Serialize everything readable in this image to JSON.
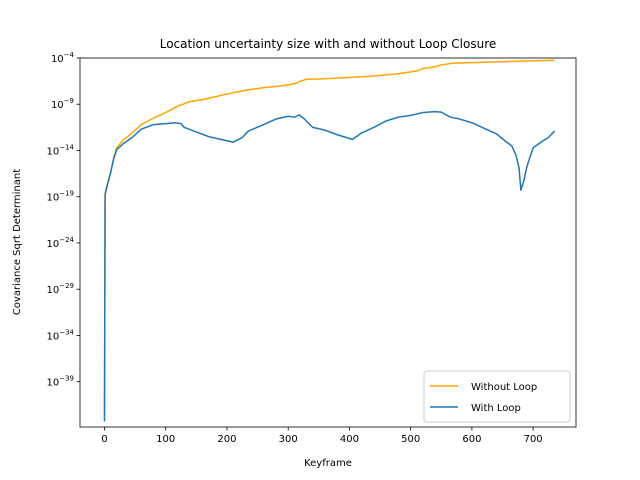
{
  "chart_data": {
    "type": "line",
    "title": "Location uncertainty size with and without Loop Closure",
    "xlabel": "Keyframe",
    "ylabel": "Covariance Sqrt Determinant",
    "xlim": [
      -40,
      770
    ],
    "ylim_log10": [
      -43.9,
      -4
    ],
    "y_scale": "log",
    "x_ticks": [
      0,
      100,
      200,
      300,
      400,
      500,
      600,
      700
    ],
    "y_ticks": [
      {
        "exp": -4,
        "label": "−4"
      },
      {
        "exp": -9,
        "label": "−9"
      },
      {
        "exp": -14,
        "label": "−14"
      },
      {
        "exp": -19,
        "label": "−19"
      },
      {
        "exp": -24,
        "label": "−24"
      },
      {
        "exp": -29,
        "label": "−29"
      },
      {
        "exp": -34,
        "label": "−34"
      },
      {
        "exp": -39,
        "label": "−39"
      }
    ],
    "y_tick_base": "10",
    "grid": false,
    "legend_position": "lower-right",
    "series": [
      {
        "name": "Without Loop",
        "color": "#ffa500",
        "points": [
          [
            0,
            -42.5
          ],
          [
            1,
            -18.6
          ],
          [
            3,
            -18.0
          ],
          [
            6,
            -17.3
          ],
          [
            10,
            -16.4
          ],
          [
            15,
            -14.8
          ],
          [
            20,
            -13.7
          ],
          [
            30,
            -12.9
          ],
          [
            45,
            -12.1
          ],
          [
            60,
            -11.2
          ],
          [
            80,
            -10.5
          ],
          [
            100,
            -9.9
          ],
          [
            120,
            -9.2
          ],
          [
            140,
            -8.7
          ],
          [
            160,
            -8.5
          ],
          [
            180,
            -8.2
          ],
          [
            200,
            -7.9
          ],
          [
            230,
            -7.5
          ],
          [
            260,
            -7.2
          ],
          [
            290,
            -7.0
          ],
          [
            310,
            -6.8
          ],
          [
            320,
            -6.5
          ],
          [
            330,
            -6.3
          ],
          [
            360,
            -6.25
          ],
          [
            400,
            -6.1
          ],
          [
            440,
            -5.95
          ],
          [
            480,
            -5.7
          ],
          [
            510,
            -5.4
          ],
          [
            520,
            -5.15
          ],
          [
            540,
            -4.95
          ],
          [
            550,
            -4.75
          ],
          [
            570,
            -4.55
          ],
          [
            600,
            -4.5
          ],
          [
            650,
            -4.4
          ],
          [
            700,
            -4.3
          ],
          [
            735,
            -4.25
          ]
        ]
      },
      {
        "name": "With Loop",
        "color": "#1f77b4",
        "points": [
          [
            0,
            -43.3
          ],
          [
            1,
            -18.8
          ],
          [
            3,
            -18.2
          ],
          [
            6,
            -17.4
          ],
          [
            10,
            -16.4
          ],
          [
            15,
            -14.9
          ],
          [
            20,
            -13.9
          ],
          [
            30,
            -13.3
          ],
          [
            45,
            -12.6
          ],
          [
            60,
            -11.7
          ],
          [
            80,
            -11.2
          ],
          [
            100,
            -11.1
          ],
          [
            115,
            -11.0
          ],
          [
            120,
            -11.05
          ],
          [
            125,
            -11.1
          ],
          [
            130,
            -11.5
          ],
          [
            150,
            -12.0
          ],
          [
            170,
            -12.5
          ],
          [
            190,
            -12.8
          ],
          [
            210,
            -13.1
          ],
          [
            225,
            -12.6
          ],
          [
            235,
            -11.9
          ],
          [
            260,
            -11.2
          ],
          [
            280,
            -10.6
          ],
          [
            300,
            -10.3
          ],
          [
            310,
            -10.4
          ],
          [
            318,
            -10.15
          ],
          [
            325,
            -10.5
          ],
          [
            340,
            -11.5
          ],
          [
            360,
            -11.8
          ],
          [
            380,
            -12.3
          ],
          [
            405,
            -12.8
          ],
          [
            420,
            -12.1
          ],
          [
            440,
            -11.5
          ],
          [
            460,
            -10.8
          ],
          [
            480,
            -10.4
          ],
          [
            500,
            -10.2
          ],
          [
            520,
            -9.9
          ],
          [
            540,
            -9.8
          ],
          [
            550,
            -9.85
          ],
          [
            565,
            -10.4
          ],
          [
            580,
            -10.6
          ],
          [
            600,
            -11.0
          ],
          [
            620,
            -11.6
          ],
          [
            640,
            -12.2
          ],
          [
            655,
            -13.0
          ],
          [
            665,
            -13.5
          ],
          [
            672,
            -14.5
          ],
          [
            677,
            -15.9
          ],
          [
            680,
            -18.3
          ],
          [
            685,
            -17.2
          ],
          [
            690,
            -15.7
          ],
          [
            700,
            -13.7
          ],
          [
            715,
            -13.0
          ],
          [
            725,
            -12.6
          ],
          [
            735,
            -11.9
          ]
        ]
      }
    ]
  }
}
